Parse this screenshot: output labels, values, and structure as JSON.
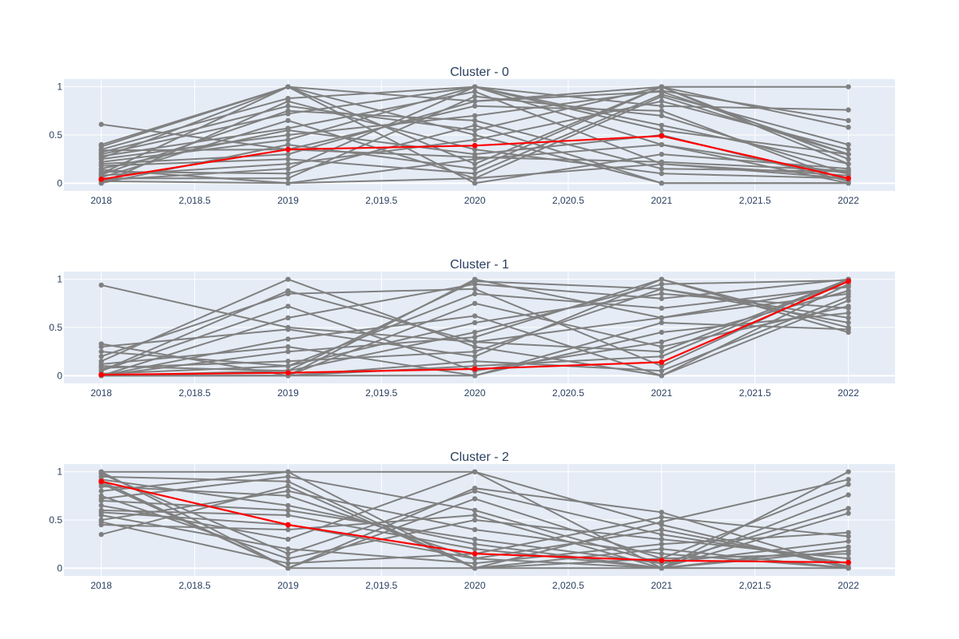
{
  "colors": {
    "paper": "#ffffff",
    "plot_bg": "#e5ecf6",
    "grid": "#ffffff",
    "member_line": "#808080",
    "centroid_line": "#ff0000",
    "text": "#2a3f5f"
  },
  "chart_data": [
    {
      "type": "line",
      "title": "Cluster - 0",
      "x": [
        2018,
        2019,
        2020,
        2021,
        2022
      ],
      "x_ticks": [
        "2018",
        "2,018.5",
        "2019",
        "2,019.5",
        "2020",
        "2,020.5",
        "2021",
        "2,021.5",
        "2022"
      ],
      "y_ticks": [
        "0",
        "0.5",
        "1"
      ],
      "xlim": [
        2017.8,
        2022.25
      ],
      "ylim": [
        -0.08,
        1.08
      ],
      "grid": true,
      "centroid": [
        0.04,
        0.35,
        0.39,
        0.49,
        0.05
      ],
      "series": [
        {
          "values": [
            0.61,
            0.35,
            0.27,
            0.22,
            0.13
          ]
        },
        {
          "values": [
            0.4,
            1.0,
            0.85,
            0.95,
            0.3
          ]
        },
        {
          "values": [
            0.38,
            1.0,
            0.2,
            1.0,
            1.0
          ]
        },
        {
          "values": [
            0.35,
            0.88,
            1.0,
            0.4,
            0.1
          ]
        },
        {
          "values": [
            0.32,
            0.8,
            0.55,
            1.0,
            0.25
          ]
        },
        {
          "values": [
            0.3,
            0.72,
            1.0,
            0.8,
            0.76
          ]
        },
        {
          "values": [
            0.28,
            0.57,
            0.95,
            0.2,
            0.05
          ]
        },
        {
          "values": [
            0.25,
            0.5,
            0.7,
            0.96,
            0.65
          ]
        },
        {
          "values": [
            0.22,
            0.45,
            1.0,
            0.6,
            0.2
          ]
        },
        {
          "values": [
            0.2,
            0.3,
            0.85,
            1.0,
            0.58
          ]
        },
        {
          "values": [
            0.18,
            0.25,
            0.1,
            0.92,
            0.4
          ]
        },
        {
          "values": [
            0.15,
            0.55,
            0.3,
            0.5,
            0.02
          ]
        },
        {
          "values": [
            0.12,
            0.1,
            0.6,
            0.0,
            0.0
          ]
        },
        {
          "values": [
            0.1,
            1.0,
            0.0,
            0.3,
            0.15
          ]
        },
        {
          "values": [
            0.08,
            0.2,
            0.45,
            0.85,
            0.35
          ]
        },
        {
          "values": [
            0.05,
            0.05,
            0.9,
            0.7,
            0.1
          ]
        },
        {
          "values": [
            0.02,
            0.0,
            0.25,
            0.4,
            0.0
          ]
        },
        {
          "values": [
            0.0,
            0.4,
            0.15,
            1.0,
            0.2
          ]
        },
        {
          "values": [
            0.0,
            0.85,
            0.35,
            0.1,
            0.05
          ]
        },
        {
          "values": [
            0.03,
            0.15,
            1.0,
            0.55,
            0.3
          ]
        },
        {
          "values": [
            0.06,
            0.65,
            0.05,
            0.2,
            0.08
          ]
        },
        {
          "values": [
            0.26,
            1.0,
            0.5,
            0.0,
            0.0
          ]
        },
        {
          "values": [
            0.34,
            0.35,
            0.8,
            0.75,
            0.02
          ]
        },
        {
          "values": [
            0.14,
            0.0,
            0.05,
            0.9,
            0.3
          ]
        },
        {
          "values": [
            0.09,
            0.75,
            0.65,
            0.15,
            0.12
          ]
        }
      ]
    },
    {
      "type": "line",
      "title": "Cluster - 1",
      "x": [
        2018,
        2019,
        2020,
        2021,
        2022
      ],
      "x_ticks": [
        "2018",
        "2,018.5",
        "2019",
        "2,019.5",
        "2020",
        "2,020.5",
        "2021",
        "2,021.5",
        "2022"
      ],
      "y_ticks": [
        "0",
        "0.5",
        "1"
      ],
      "xlim": [
        2017.8,
        2022.25
      ],
      "ylim": [
        -0.08,
        1.08
      ],
      "grid": true,
      "centroid": [
        0.01,
        0.03,
        0.07,
        0.14,
        0.98
      ],
      "series": [
        {
          "values": [
            0.94,
            0.5,
            0.35,
            0.25,
            1.0
          ]
        },
        {
          "values": [
            0.33,
            0.0,
            1.0,
            0.6,
            0.85
          ]
        },
        {
          "values": [
            0.3,
            0.48,
            0.2,
            1.0,
            0.45
          ]
        },
        {
          "values": [
            0.25,
            0.1,
            0.55,
            0.85,
            0.7
          ]
        },
        {
          "values": [
            0.2,
            0.85,
            0.9,
            0.1,
            1.0
          ]
        },
        {
          "values": [
            0.15,
            1.0,
            0.3,
            0.0,
            0.95
          ]
        },
        {
          "values": [
            0.1,
            0.05,
            0.98,
            0.9,
            0.6
          ]
        },
        {
          "values": [
            0.05,
            0.72,
            0.05,
            0.35,
            0.88
          ]
        },
        {
          "values": [
            0.0,
            0.25,
            0.4,
            1.0,
            0.5
          ]
        },
        {
          "values": [
            0.0,
            0.0,
            0.1,
            0.2,
            1.0
          ]
        },
        {
          "values": [
            0.0,
            0.38,
            0.62,
            0.0,
            0.78
          ]
        },
        {
          "values": [
            0.02,
            0.1,
            0.85,
            0.7,
            0.92
          ]
        },
        {
          "values": [
            0.0,
            0.0,
            0.0,
            0.45,
            0.65
          ]
        },
        {
          "values": [
            0.08,
            0.15,
            0.25,
            0.9,
            0.55
          ]
        },
        {
          "values": [
            0.0,
            0.6,
            0.95,
            0.8,
            1.0
          ]
        },
        {
          "values": [
            0.0,
            0.0,
            0.15,
            0.05,
            0.82
          ]
        },
        {
          "values": [
            0.12,
            0.3,
            0.0,
            0.55,
            0.48
          ]
        },
        {
          "values": [
            0.0,
            0.05,
            0.45,
            0.95,
            0.99
          ]
        },
        {
          "values": [
            0.0,
            0.0,
            0.75,
            0.3,
            0.72
          ]
        },
        {
          "values": [
            0.05,
            0.88,
            0.35,
            0.6,
            0.93
          ]
        }
      ]
    },
    {
      "type": "line",
      "title": "Cluster - 2",
      "x": [
        2018,
        2019,
        2020,
        2021,
        2022
      ],
      "x_ticks": [
        "2018",
        "2,018.5",
        "2019",
        "2,019.5",
        "2020",
        "2,020.5",
        "2021",
        "2,021.5",
        "2022"
      ],
      "y_ticks": [
        "0",
        "0.5",
        "1"
      ],
      "xlim": [
        2017.8,
        2022.25
      ],
      "ylim": [
        -0.08,
        1.08
      ],
      "grid": true,
      "centroid": [
        0.9,
        0.45,
        0.15,
        0.08,
        0.06
      ],
      "series": [
        {
          "values": [
            1.0,
            1.0,
            1.0,
            0.0,
            1.0
          ]
        },
        {
          "values": [
            1.0,
            0.0,
            0.83,
            0.58,
            0.0
          ]
        },
        {
          "values": [
            0.95,
            0.9,
            0.0,
            0.48,
            0.92
          ]
        },
        {
          "values": [
            0.9,
            0.0,
            0.72,
            0.1,
            0.87
          ]
        },
        {
          "values": [
            0.85,
            0.75,
            0.1,
            0.0,
            0.0
          ]
        },
        {
          "values": [
            0.8,
            1.0,
            0.0,
            0.0,
            0.76
          ]
        },
        {
          "values": [
            0.75,
            0.1,
            0.5,
            0.3,
            0.1
          ]
        },
        {
          "values": [
            0.7,
            0.6,
            0.3,
            0.05,
            0.62
          ]
        },
        {
          "values": [
            0.65,
            0.3,
            1.0,
            0.45,
            0.0
          ]
        },
        {
          "values": [
            0.6,
            0.55,
            0.2,
            0.0,
            0.57
          ]
        },
        {
          "values": [
            0.55,
            0.2,
            0.05,
            0.25,
            0.37
          ]
        },
        {
          "values": [
            0.5,
            0.8,
            0.4,
            0.15,
            0.0
          ]
        },
        {
          "values": [
            0.48,
            0.05,
            0.15,
            0.53,
            0.33
          ]
        },
        {
          "values": [
            0.45,
            0.4,
            0.55,
            0.0,
            0.22
          ]
        },
        {
          "values": [
            0.35,
            0.85,
            0.0,
            0.1,
            0.15
          ]
        },
        {
          "values": [
            0.98,
            0.15,
            0.8,
            0.35,
            0.05
          ]
        },
        {
          "values": [
            0.92,
            0.65,
            0.25,
            0.0,
            0.18
          ]
        },
        {
          "values": [
            0.88,
            0.0,
            0.0,
            0.2,
            0.0
          ]
        },
        {
          "values": [
            0.72,
            0.95,
            0.6,
            0.05,
            0.28
          ]
        },
        {
          "values": [
            0.58,
            0.45,
            0.1,
            0.4,
            0.02
          ]
        }
      ]
    }
  ]
}
